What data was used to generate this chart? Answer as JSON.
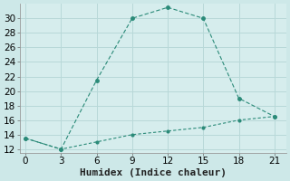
{
  "line1_x": [
    0,
    3,
    6,
    9,
    12,
    15,
    18,
    21
  ],
  "line1_y": [
    13.5,
    12.0,
    21.5,
    30.0,
    31.5,
    30.0,
    19.0,
    16.5
  ],
  "line2_x": [
    0,
    3,
    6,
    9,
    12,
    15,
    18,
    21
  ],
  "line2_y": [
    13.5,
    12.0,
    13.0,
    14.0,
    14.5,
    15.0,
    16.0,
    16.5
  ],
  "line_color": "#2a8a78",
  "bg_color": "#cde8e8",
  "plot_bg_color": "#d6eded",
  "grid_color": "#b8d8d8",
  "xlabel": "Humidex (Indice chaleur)",
  "ylim": [
    11.5,
    32
  ],
  "xlim": [
    -0.5,
    22
  ],
  "xticks": [
    0,
    3,
    6,
    9,
    12,
    15,
    18,
    21
  ],
  "yticks": [
    12,
    14,
    16,
    18,
    20,
    22,
    24,
    26,
    28,
    30
  ],
  "xlabel_fontsize": 8,
  "tick_fontsize": 7.5
}
